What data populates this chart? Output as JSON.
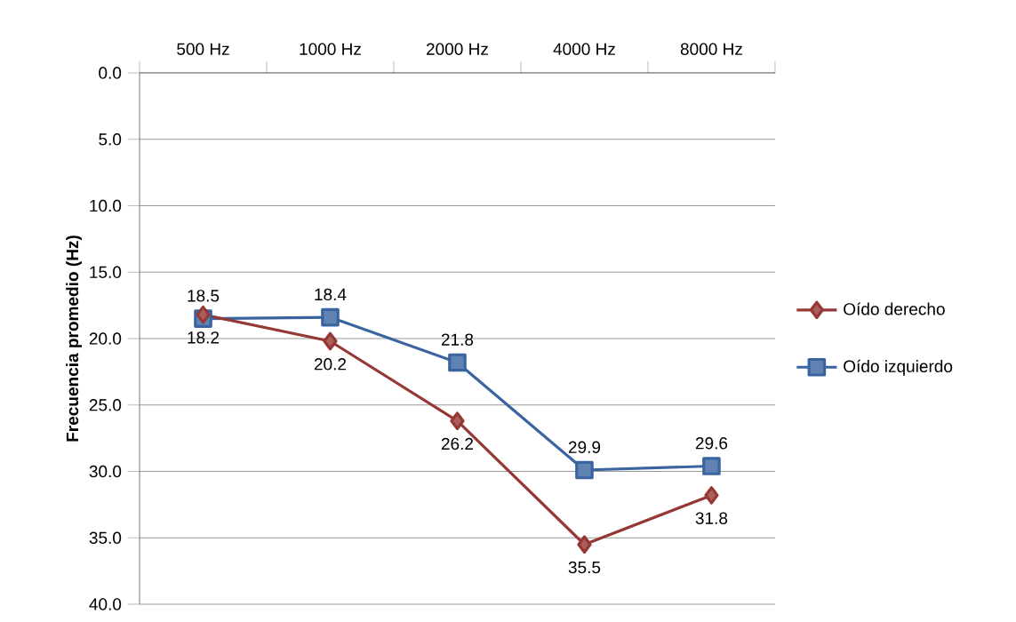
{
  "chart_data": {
    "type": "line",
    "ylabel": "Frecuencia promedio (Hz)",
    "categories": [
      "500 Hz",
      "1000 Hz",
      "2000 Hz",
      "4000 Hz",
      "8000 Hz"
    ],
    "series": [
      {
        "name": "Oído derecho",
        "color": "#953735",
        "marker": "diamond",
        "values": [
          18.2,
          20.2,
          26.2,
          35.5,
          31.8
        ]
      },
      {
        "name": "Oído izquierdo",
        "color": "#3a64a0",
        "marker": "square",
        "values": [
          18.5,
          18.4,
          21.8,
          29.9,
          29.6
        ]
      }
    ],
    "ylim": [
      40,
      0
    ],
    "yticks": [
      {
        "value": 0,
        "label": "0.0"
      },
      {
        "value": 5,
        "label": "5.0"
      },
      {
        "value": 10,
        "label": "10.0"
      },
      {
        "value": 15,
        "label": "15.0"
      },
      {
        "value": 20,
        "label": "20.0"
      },
      {
        "value": 25,
        "label": "25.0"
      },
      {
        "value": 30,
        "label": "30.0"
      },
      {
        "value": 35,
        "label": "35.0"
      },
      {
        "value": 40,
        "label": "40.0"
      }
    ],
    "grid": "y",
    "legend": "right",
    "data_labels": true,
    "line_style": "solid"
  }
}
